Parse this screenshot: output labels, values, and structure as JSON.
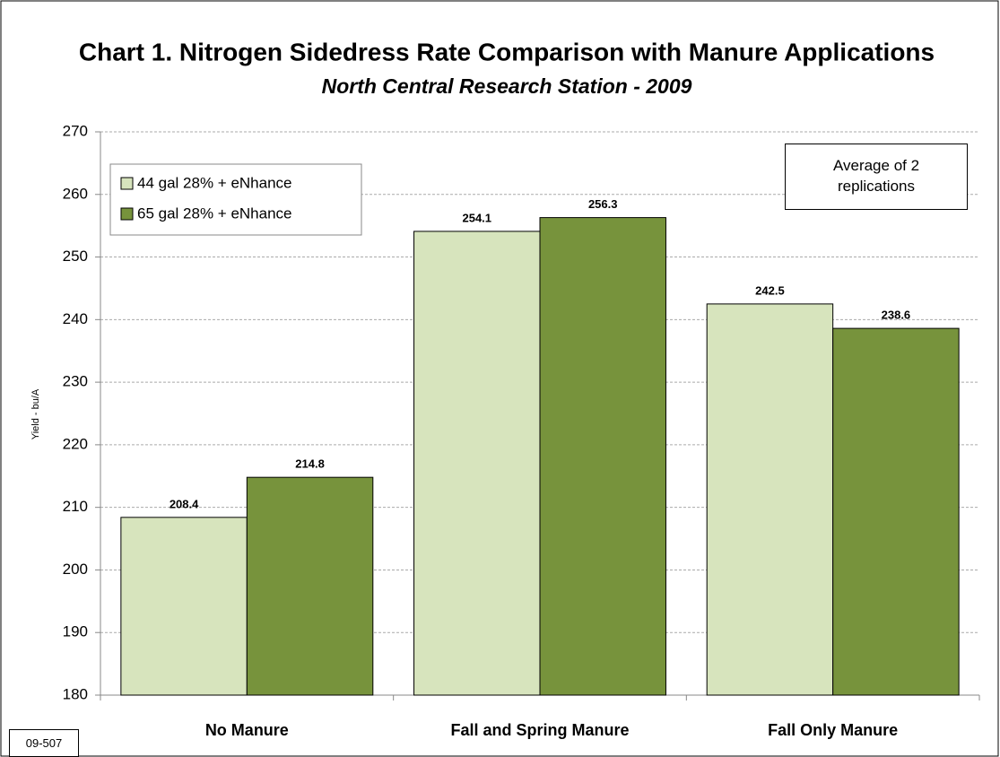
{
  "chart_data": {
    "type": "bar",
    "title": "Chart 1. Nitrogen Sidedress Rate Comparison with Manure Applications",
    "subtitle": "North Central Research Station - 2009",
    "y_label": "Yield - bu/A",
    "annotation": "Average of 2 replications",
    "footnote": "09-507",
    "categories": [
      "No Manure",
      "Fall and Spring Manure",
      "Fall Only Manure"
    ],
    "series": [
      {
        "name": "44 gal 28% + eNhance",
        "color": "#d7e4bd",
        "values": [
          208.4,
          254.1,
          242.5
        ]
      },
      {
        "name": "65 gal 28% + eNhance",
        "color": "#77933c",
        "values": [
          214.8,
          256.3,
          238.6
        ]
      }
    ],
    "ylim": [
      180,
      270
    ],
    "yticks": [
      180,
      190,
      200,
      210,
      220,
      230,
      240,
      250,
      260,
      270
    ],
    "grid": true,
    "legend": "upper left"
  }
}
